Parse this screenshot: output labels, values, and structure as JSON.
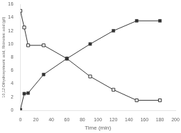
{
  "chart_data": {
    "type": "line",
    "xlabel": "Time (min)",
    "ylabel": "10,12-Dihydroxystearic acid, Ricinoleic acid (g/l)",
    "x": [
      0,
      5,
      10,
      30,
      60,
      90,
      120,
      150,
      180
    ],
    "series": [
      {
        "color": "#333333",
        "marker": "square",
        "values": [
          0.1,
          2.5,
          2.6,
          5.4,
          7.8,
          10.0,
          12.0,
          13.5,
          13.5
        ]
      },
      {
        "color": "#333333",
        "marker": "open_square",
        "values": [
          15.0,
          12.5,
          9.8,
          9.8,
          7.8,
          5.1,
          3.1,
          1.5,
          1.5
        ]
      }
    ],
    "xlim": [
      0,
      200
    ],
    "ylim": [
      0,
      16
    ],
    "xticks": [
      0,
      20,
      40,
      60,
      80,
      100,
      120,
      140,
      160,
      180,
      200
    ],
    "yticks": [
      0,
      2,
      4,
      6,
      8,
      10,
      12,
      14,
      16
    ],
    "grid": false
  }
}
